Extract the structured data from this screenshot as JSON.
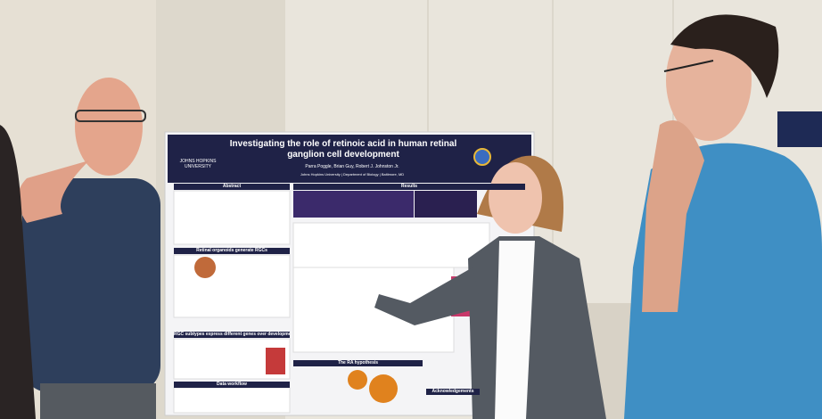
{
  "poster": {
    "title": "Investigating the role of retinoic acid in human retinal ganglion cell development",
    "logo_text": "JOHNS HOPKINS UNIVERSITY",
    "authors": "Parra Poggle, Brian Guy, Robert J. Johnston Jr.",
    "affiliation": "Johns Hopkins University | Department of Biology | Baltimore, MD",
    "sections": [
      "Abstract",
      "Results",
      "Retinal organoids generate RGCs",
      "RGC subtypes express different genes over development",
      "Data workflow",
      "The RA hypothesis",
      "Acknowledgements"
    ]
  }
}
